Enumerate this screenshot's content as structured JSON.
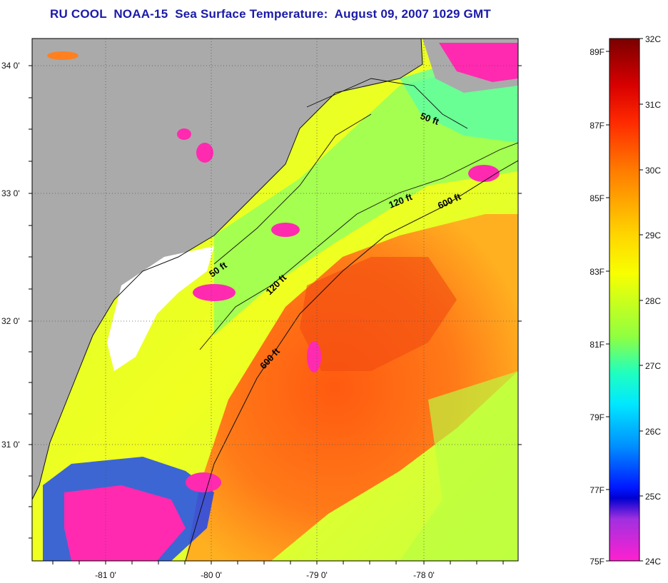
{
  "title": "RU COOL  NOAA-15  Sea Surface Temperature:  August 09, 2007 1029 GMT",
  "map": {
    "lat_ticks": [
      "34 0'",
      "33 0'",
      "32 0'",
      "31 0'"
    ],
    "lon_ticks": [
      "-81 0'",
      "-80 0'",
      "-79 0'",
      "-78 0'"
    ],
    "depth_labels": [
      "50 ft",
      "120 ft",
      "600 ft",
      "50 ft",
      "120 ft",
      "600 ft"
    ],
    "colors": {
      "land": "#aaaaaa",
      "warm": "#ff6a10",
      "mid": "#e8ff20",
      "cool": "#40ffc8",
      "cloud": "#ff2ab0",
      "no_data": "#ffffff"
    }
  },
  "colorbar": {
    "celsius_labels": [
      "32C",
      "31C",
      "30C",
      "29C",
      "28C",
      "27C",
      "26C",
      "25C",
      "24C"
    ],
    "fahrenheit_labels": [
      "89F",
      "87F",
      "85F",
      "83F",
      "81F",
      "79F",
      "77F",
      "75F"
    ],
    "gradient_colors": [
      "#7a0000",
      "#ff0000",
      "#ff6a00",
      "#ffd000",
      "#f8ff00",
      "#90ff40",
      "#20ffb0",
      "#00f0ff",
      "#0090ff",
      "#0020ff",
      "#0000e0",
      "#a030e0",
      "#ff20d0"
    ]
  }
}
